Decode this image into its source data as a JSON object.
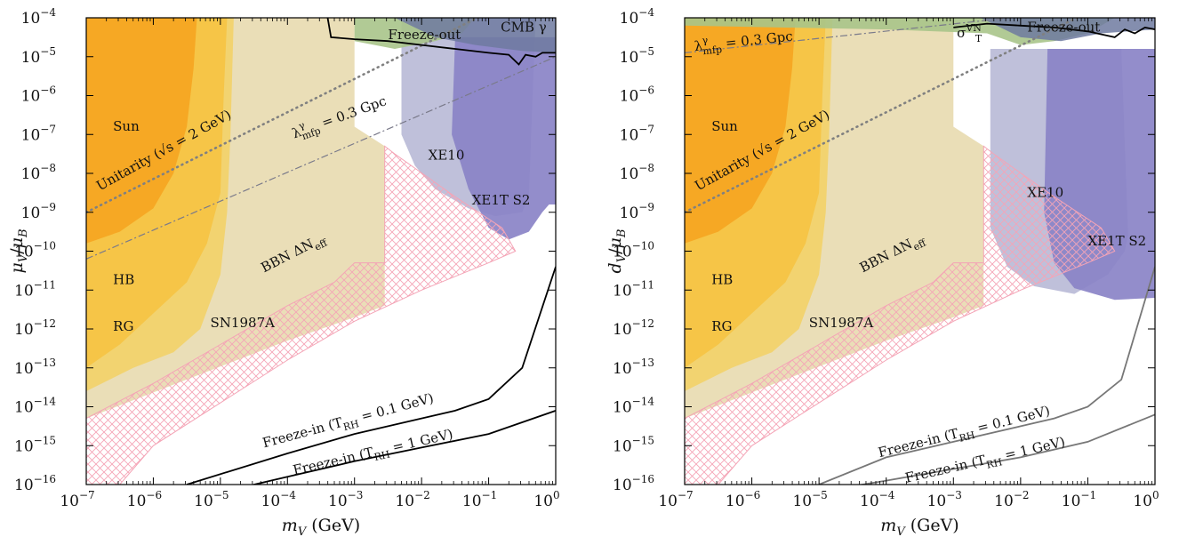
{
  "chart_data": [
    {
      "type": "area",
      "panel": "left",
      "xlabel_main": "m",
      "xlabel_sub": "V",
      "xlabel_unit": " (GeV)",
      "ylabel_num": "μ",
      "ylabel_num_sub": "V",
      "ylabel_den": "μ",
      "ylabel_den_sub": "B",
      "xscale": "log",
      "yscale": "log",
      "xlim": [
        1e-07,
        1
      ],
      "ylim": [
        1e-16,
        0.0001
      ],
      "x_ticks": [
        "-7",
        "-6",
        "-5",
        "-4",
        "-3",
        "-2",
        "-1",
        "0"
      ],
      "y_ticks": [
        "-16",
        "-15",
        "-14",
        "-13",
        "-12",
        "-11",
        "-10",
        "-9",
        "-8",
        "-7",
        "-6",
        "-5",
        "-4"
      ],
      "labels": {
        "sun": "Sun",
        "hb": "HB",
        "rg": "RG",
        "sn": "SN1987A",
        "bbn": "BBN ΔN",
        "bbn_sub": "eff",
        "xe10": "XE10",
        "xe1t": "XE1T S2",
        "cmb": "CMB γ",
        "freezeout": "Freeze-out",
        "unitarity": "Unitarity (√s = 2 GeV)",
        "mfp": "λ",
        "mfp_sup": "γ",
        "mfp_sub": "mfp",
        "mfp_rest": " = 0.3 Gpc",
        "fi1_a": "Freeze-in (T",
        "fi1_sub": "RH",
        "fi1_b": " = 0.1 GeV)",
        "fi2_a": "Freeze-in (T",
        "fi2_sub": "RH",
        "fi2_b": " = 1 GeV)"
      },
      "series": [
        {
          "name": "Freeze-in (T_RH = 0.1 GeV)",
          "x_log10": [
            -5.5,
            -4,
            -3,
            -2,
            -1.5,
            -1,
            -0.5,
            0
          ],
          "y_log10": [
            -16,
            -15.2,
            -14.7,
            -14.3,
            -14.1,
            -13.8,
            -13,
            -10.4
          ]
        },
        {
          "name": "Freeze-in (T_RH = 1 GeV)",
          "x_log10": [
            -6,
            -5,
            -4,
            -3,
            -2,
            -1,
            0
          ],
          "y_log10": [
            -16.5,
            -16.2,
            -15.8,
            -15.4,
            -15.05,
            -14.7,
            -14.1
          ]
        },
        {
          "name": "Unitarity (√s = 2 GeV)",
          "x_log10": [
            -7,
            0
          ],
          "y_log10": [
            -9.0,
            -3.0
          ]
        },
        {
          "name": "λmfp = 0.3 Gpc",
          "x_log10": [
            -7,
            0
          ],
          "y_log10": [
            -10.2,
            -5.0
          ]
        }
      ]
    },
    {
      "type": "area",
      "panel": "right",
      "xlabel_main": "m",
      "xlabel_sub": "V",
      "xlabel_unit": " (GeV)",
      "ylabel_num": "d",
      "ylabel_num_sub": "V",
      "ylabel_den": "μ",
      "ylabel_den_sub": "B",
      "xscale": "log",
      "yscale": "log",
      "xlim": [
        1e-07,
        1
      ],
      "ylim": [
        1e-16,
        0.0001
      ],
      "x_ticks": [
        "-7",
        "-6",
        "-5",
        "-4",
        "-3",
        "-2",
        "-1",
        "0"
      ],
      "y_ticks": [
        "-16",
        "-15",
        "-14",
        "-13",
        "-12",
        "-11",
        "-10",
        "-9",
        "-8",
        "-7",
        "-6",
        "-5",
        "-4"
      ],
      "labels": {
        "sun": "Sun",
        "hb": "HB",
        "rg": "RG",
        "sn": "SN1987A",
        "bbn": "BBN ΔN",
        "bbn_sub": "eff",
        "xe10": "XE10",
        "xe1t": "XE1T S2",
        "sigma": "σ",
        "sigma_sup": "VN",
        "sigma_sub": "T",
        "freezeout": "Freeze-out",
        "unitarity": "Unitarity (√s = 2 GeV)",
        "mfp": "λ",
        "mfp_sup": "γ",
        "mfp_sub": "mfp",
        "mfp_rest": " = 0.3 Gpc",
        "fi1_a": "Freeze-in (T",
        "fi1_sub": "RH",
        "fi1_b": " = 0.1 GeV)",
        "fi2_a": "Freeze-in (T",
        "fi2_sub": "RH",
        "fi2_b": " = 1 GeV)"
      },
      "series": [
        {
          "name": "Freeze-in (T_RH = 0.1 GeV)",
          "x_log10": [
            -5,
            -4,
            -3,
            -2,
            -1.5,
            -1,
            -0.5,
            0
          ],
          "y_log10": [
            -16,
            -15.3,
            -14.9,
            -14.5,
            -14.3,
            -14,
            -13.3,
            -10.4
          ]
        },
        {
          "name": "Freeze-in (T_RH = 1 GeV)",
          "x_log10": [
            -5.4,
            -4,
            -3,
            -2,
            -1,
            0
          ],
          "y_log10": [
            -16.3,
            -15.9,
            -15.6,
            -15.3,
            -14.9,
            -14.2
          ]
        },
        {
          "name": "Unitarity (√s = 2 GeV)",
          "x_log10": [
            -7,
            0
          ],
          "y_log10": [
            -9.0,
            -3.0
          ]
        },
        {
          "name": "λmfp = 0.3 Gpc",
          "x_log10": [
            -7,
            0
          ],
          "y_log10": [
            -4.9,
            -3.6
          ]
        }
      ]
    }
  ],
  "colors": {
    "sun": "#f5a623",
    "hb": "#f6c445",
    "rg": "#f3d164",
    "bbn": "#e9dcb3",
    "xe10": "#b8b9d6",
    "xe1t": "#8a83c7",
    "cmb": "#7f9a80",
    "green": "#a9c48a",
    "sn_hatch": "#f4a4b6",
    "freezein_left": "#000000",
    "freezein_right": "#777777",
    "dotted": "#808080",
    "dashdot": "#7a7a8a"
  }
}
